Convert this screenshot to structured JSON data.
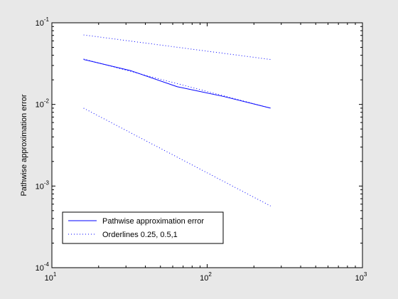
{
  "chart_data": {
    "type": "line",
    "title": "",
    "xlabel": "",
    "ylabel": "Pathwise approximation error",
    "xscale": "log",
    "yscale": "log",
    "xlim": [
      10,
      1000
    ],
    "ylim": [
      0.0001,
      0.1
    ],
    "grid": false,
    "legend_position": "bottom-left",
    "x_ticks": [
      {
        "value": 10,
        "base": "10",
        "exp": "1"
      },
      {
        "value": 100,
        "base": "10",
        "exp": "2"
      },
      {
        "value": 1000,
        "base": "10",
        "exp": "3"
      }
    ],
    "y_ticks": [
      {
        "value": 0.0001,
        "base": "10",
        "exp": "-4"
      },
      {
        "value": 0.001,
        "base": "10",
        "exp": "-3"
      },
      {
        "value": 0.01,
        "base": "10",
        "exp": "-2"
      },
      {
        "value": 0.1,
        "base": "10",
        "exp": "-1"
      }
    ],
    "series": [
      {
        "name": "Pathwise approximation error",
        "style": "solid",
        "color": "#0000ff",
        "x": [
          16,
          32,
          64,
          128,
          256
        ],
        "y": [
          0.0355,
          0.026,
          0.0165,
          0.0125,
          0.009
        ]
      },
      {
        "name": "Orderlines 0.25, 0.5,1",
        "style": "dotted",
        "color": "#0000ff",
        "x": [
          16,
          256
        ],
        "y": [
          0.071,
          0.0355
        ]
      },
      {
        "name": "",
        "style": "dotted",
        "color": "#0000ff",
        "x": [
          16,
          256
        ],
        "y": [
          0.036,
          0.009
        ]
      },
      {
        "name": "",
        "style": "dotted",
        "color": "#0000ff",
        "x": [
          16,
          256
        ],
        "y": [
          0.009,
          0.00057
        ]
      }
    ],
    "legend": [
      {
        "label": "Pathwise approximation error",
        "style": "solid",
        "color": "#0000ff"
      },
      {
        "label": "Orderlines 0.25, 0.5,1",
        "style": "dotted",
        "color": "#0000ff"
      }
    ]
  }
}
